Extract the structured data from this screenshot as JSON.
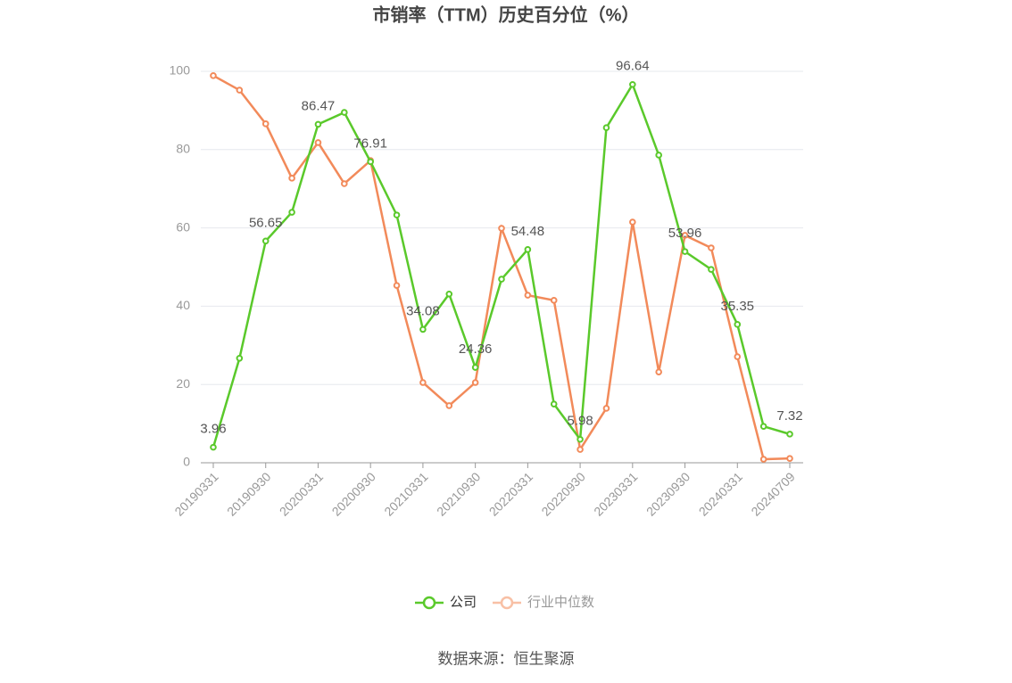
{
  "chart_data": {
    "type": "line",
    "title": "市销率（TTM）历史百分位（%）",
    "categories": [
      "20190331",
      null,
      "20190930",
      null,
      "20200331",
      null,
      "20200930",
      null,
      "20210331",
      null,
      "20210930",
      null,
      "20220331",
      null,
      "20220930",
      null,
      "20230331",
      null,
      "20230930",
      null,
      "20240331",
      null,
      "20240709"
    ],
    "series": [
      {
        "name": "公司",
        "color": "#5ac92b",
        "values": [
          3.96,
          26.7,
          56.65,
          64.0,
          86.47,
          89.5,
          76.91,
          63.3,
          34.08,
          43.1,
          24.36,
          46.9,
          54.48,
          15.0,
          5.98,
          85.6,
          96.64,
          78.6,
          53.96,
          49.4,
          35.35,
          9.3,
          7.32
        ]
      },
      {
        "name": "行业中位数",
        "color": "#f28a5a",
        "values": [
          98.9,
          95.2,
          86.6,
          72.7,
          81.8,
          71.3,
          77.2,
          45.3,
          20.5,
          14.6,
          20.5,
          59.9,
          42.8,
          41.5,
          3.4,
          13.9,
          61.5,
          23.2,
          58.1,
          54.9,
          27.1,
          0.9,
          1.1
        ]
      }
    ],
    "ylim": [
      0,
      100
    ],
    "yticks": [
      0,
      20,
      40,
      60,
      80,
      100
    ],
    "grid": true,
    "source": "数据来源：恒生聚源"
  }
}
